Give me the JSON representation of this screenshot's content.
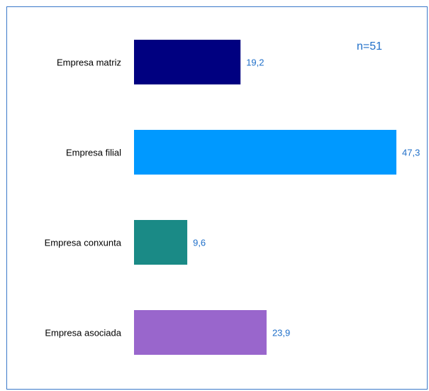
{
  "chart_data": {
    "type": "bar",
    "orientation": "horizontal",
    "categories": [
      "Empresa matriz",
      "Empresa filial",
      "Empresa conxunta",
      "Empresa asociada"
    ],
    "values": [
      19.2,
      47.3,
      9.6,
      23.9
    ],
    "value_labels": [
      "19,2",
      "47,3",
      "9,6",
      "23,9"
    ],
    "colors": [
      "#000080",
      "#0099ff",
      "#1a8a86",
      "#9966cc"
    ],
    "xlim": [
      0,
      47.3
    ],
    "grid": false,
    "legend": "none",
    "annotation": "n=51",
    "title": "",
    "xlabel": "",
    "ylabel": ""
  }
}
